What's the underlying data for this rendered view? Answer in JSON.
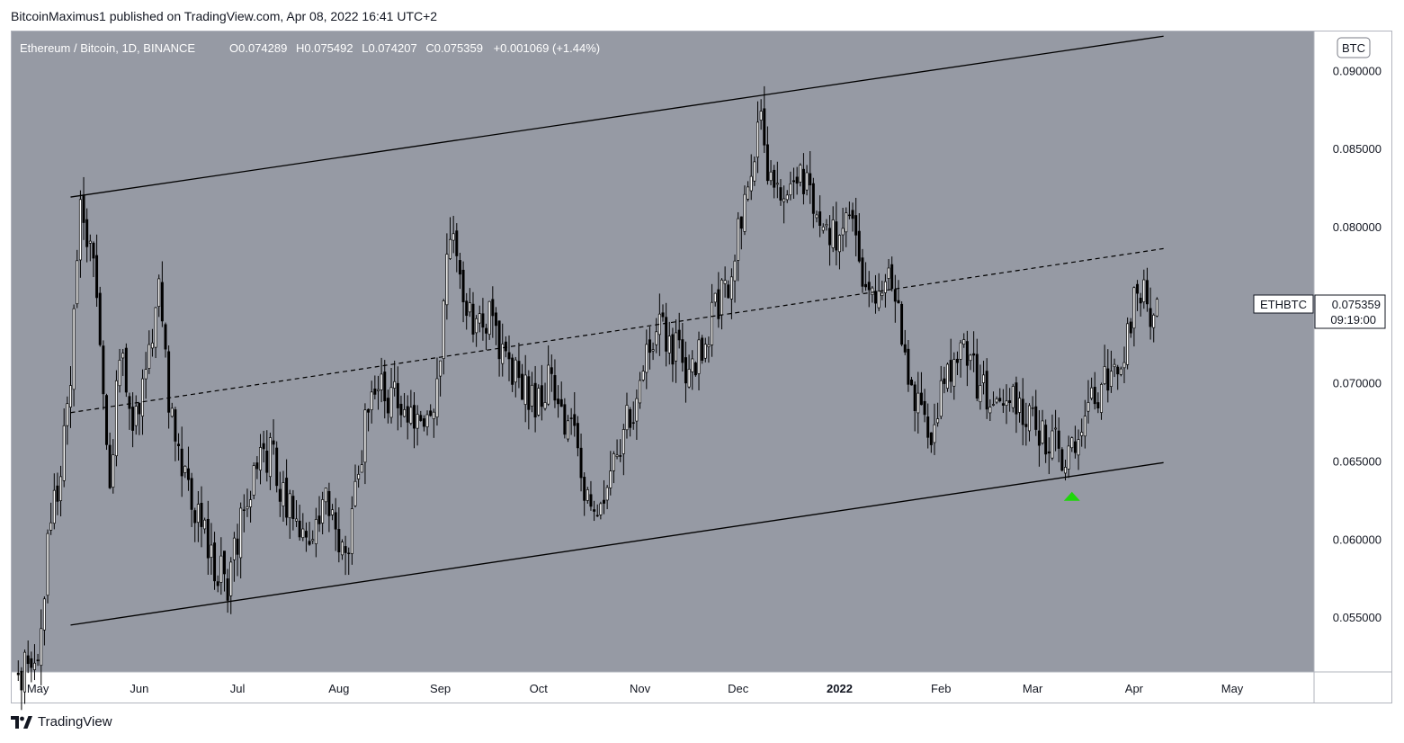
{
  "header": {
    "publisher": "BitcoinMaximus1",
    "published_text": "published on TradingView.com, Apr 08, 2022 16:41 UTC+2"
  },
  "legend": {
    "symbol": "Ethereum / Bitcoin, 1D, BINANCE",
    "open_label": "O",
    "open": "0.074289",
    "high_label": "H",
    "high": "0.075492",
    "low_label": "L",
    "low": "0.074207",
    "close_label": "C",
    "close": "0.075359",
    "change": "+0.001069 (+1.44%)"
  },
  "currency_badge": "BTC",
  "price_tag": {
    "ticker": "ETHBTC",
    "price": "0.075359",
    "countdown": "09:19:00"
  },
  "footer": {
    "brand": "TradingView"
  },
  "colors": {
    "plot_bg": "#969aa4",
    "axis_bg": "#ffffff",
    "candle": "#000000",
    "marker": "#1fd60a"
  },
  "chart_data": {
    "type": "candlestick",
    "y_ticks": [
      "0.090000",
      "0.085000",
      "0.080000",
      "0.075000",
      "0.070000",
      "0.065000",
      "0.060000",
      "0.055000"
    ],
    "y_range": [
      0.0515,
      0.0925
    ],
    "x_labels": [
      {
        "label": "May",
        "date": "2021-05-01",
        "bold": false
      },
      {
        "label": "Jun",
        "date": "2021-06-01",
        "bold": false
      },
      {
        "label": "Jul",
        "date": "2021-07-01",
        "bold": false
      },
      {
        "label": "Aug",
        "date": "2021-08-01",
        "bold": false
      },
      {
        "label": "Sep",
        "date": "2021-09-01",
        "bold": false
      },
      {
        "label": "Oct",
        "date": "2021-10-01",
        "bold": false
      },
      {
        "label": "Nov",
        "date": "2021-11-01",
        "bold": false
      },
      {
        "label": "Dec",
        "date": "2021-12-01",
        "bold": false
      },
      {
        "label": "2022",
        "date": "2022-01-01",
        "bold": true
      },
      {
        "label": "Feb",
        "date": "2022-02-01",
        "bold": false
      },
      {
        "label": "Mar",
        "date": "2022-03-01",
        "bold": false
      },
      {
        "label": "Apr",
        "date": "2022-04-01",
        "bold": false
      },
      {
        "label": "May",
        "date": "2022-05-01",
        "bold": false
      }
    ],
    "x_range": [
      "2021-04-23",
      "2022-05-26"
    ],
    "price_path": [
      [
        "2021-04-25",
        0.0512
      ],
      [
        "2021-05-02",
        0.053
      ],
      [
        "2021-05-04",
        0.06
      ],
      [
        "2021-05-07",
        0.063
      ],
      [
        "2021-05-10",
        0.068
      ],
      [
        "2021-05-12",
        0.074
      ],
      [
        "2021-05-14",
        0.081
      ],
      [
        "2021-05-15",
        0.0805
      ],
      [
        "2021-05-18",
        0.077
      ],
      [
        "2021-05-20",
        0.072
      ],
      [
        "2021-05-23",
        0.064
      ],
      [
        "2021-05-25",
        0.069
      ],
      [
        "2021-05-27",
        0.072
      ],
      [
        "2021-05-30",
        0.066
      ],
      [
        "2021-06-03",
        0.072
      ],
      [
        "2021-06-07",
        0.0755
      ],
      [
        "2021-06-10",
        0.069
      ],
      [
        "2021-06-15",
        0.064
      ],
      [
        "2021-06-20",
        0.061
      ],
      [
        "2021-06-25",
        0.058
      ],
      [
        "2021-06-28",
        0.057
      ],
      [
        "2021-07-03",
        0.062
      ],
      [
        "2021-07-08",
        0.066
      ],
      [
        "2021-07-12",
        0.065
      ],
      [
        "2021-07-18",
        0.061
      ],
      [
        "2021-07-23",
        0.0595
      ],
      [
        "2021-07-28",
        0.0625
      ],
      [
        "2021-08-01",
        0.059
      ],
      [
        "2021-08-04",
        0.06
      ],
      [
        "2021-08-08",
        0.066
      ],
      [
        "2021-08-12",
        0.07
      ],
      [
        "2021-08-18",
        0.069
      ],
      [
        "2021-08-22",
        0.068
      ],
      [
        "2021-08-26",
        0.0665
      ],
      [
        "2021-08-30",
        0.067
      ],
      [
        "2021-09-01",
        0.072
      ],
      [
        "2021-09-03",
        0.079
      ],
      [
        "2021-09-05",
        0.0785
      ],
      [
        "2021-09-08",
        0.075
      ],
      [
        "2021-09-12",
        0.073
      ],
      [
        "2021-09-16",
        0.0745
      ],
      [
        "2021-09-20",
        0.072
      ],
      [
        "2021-09-25",
        0.07
      ],
      [
        "2021-09-30",
        0.069
      ],
      [
        "2021-10-04",
        0.07
      ],
      [
        "2021-10-08",
        0.068
      ],
      [
        "2021-10-12",
        0.066
      ],
      [
        "2021-10-16",
        0.063
      ],
      [
        "2021-10-20",
        0.061
      ],
      [
        "2021-10-23",
        0.064
      ],
      [
        "2021-10-27",
        0.067
      ],
      [
        "2021-10-31",
        0.069
      ],
      [
        "2021-11-03",
        0.072
      ],
      [
        "2021-11-07",
        0.074
      ],
      [
        "2021-11-12",
        0.072
      ],
      [
        "2021-11-17",
        0.0705
      ],
      [
        "2021-11-21",
        0.073
      ],
      [
        "2021-11-25",
        0.075
      ],
      [
        "2021-11-29",
        0.077
      ],
      [
        "2021-12-02",
        0.081
      ],
      [
        "2021-12-05",
        0.084
      ],
      [
        "2021-12-08",
        0.087
      ],
      [
        "2021-12-10",
        0.084
      ],
      [
        "2021-12-14",
        0.082
      ],
      [
        "2021-12-18",
        0.083
      ],
      [
        "2021-12-22",
        0.0835
      ],
      [
        "2021-12-26",
        0.08
      ],
      [
        "2021-12-31",
        0.079
      ],
      [
        "2022-01-04",
        0.082
      ],
      [
        "2022-01-06",
        0.08
      ],
      [
        "2022-01-09",
        0.076
      ],
      [
        "2022-01-13",
        0.075
      ],
      [
        "2022-01-17",
        0.077
      ],
      [
        "2022-01-20",
        0.073
      ],
      [
        "2022-01-24",
        0.069
      ],
      [
        "2022-01-28",
        0.066
      ],
      [
        "2022-02-02",
        0.07
      ],
      [
        "2022-02-07",
        0.0725
      ],
      [
        "2022-02-12",
        0.07
      ],
      [
        "2022-02-17",
        0.0685
      ],
      [
        "2022-02-22",
        0.07
      ],
      [
        "2022-02-27",
        0.068
      ],
      [
        "2022-03-03",
        0.067
      ],
      [
        "2022-03-08",
        0.066
      ],
      [
        "2022-03-11",
        0.0655
      ],
      [
        "2022-03-15",
        0.0665
      ],
      [
        "2022-03-19",
        0.069
      ],
      [
        "2022-03-24",
        0.07
      ],
      [
        "2022-03-29",
        0.072
      ],
      [
        "2022-04-01",
        0.075
      ],
      [
        "2022-04-04",
        0.0755
      ],
      [
        "2022-04-06",
        0.074
      ],
      [
        "2022-04-08",
        0.0754
      ]
    ],
    "last_candle": {
      "date": "2022-04-08",
      "open": 0.074289,
      "high": 0.075492,
      "low": 0.074207,
      "close": 0.075359
    },
    "channel": {
      "upper": [
        [
          "2021-05-11",
          0.0819
        ],
        [
          "2022-04-10",
          0.0922
        ]
      ],
      "lower": [
        [
          "2021-05-11",
          0.0545
        ],
        [
          "2022-04-10",
          0.0649
        ]
      ],
      "middle": [
        [
          "2021-05-11",
          0.0681
        ],
        [
          "2022-04-10",
          0.0786
        ]
      ]
    },
    "marker": {
      "type": "up-arrow",
      "date": "2022-03-13",
      "price": 0.0628
    }
  }
}
